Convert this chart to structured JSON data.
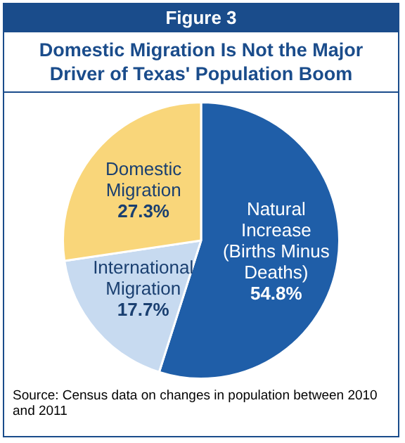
{
  "chart_data": {
    "type": "pie",
    "title": "Domestic Migration Is Not the Major Driver of Texas' Population Boom",
    "categories": [
      "Natural Increase (Births Minus Deaths)",
      "International Migration",
      "Domestic Migration"
    ],
    "values": [
      54.8,
      17.7,
      27.3
    ],
    "colors": [
      "#1f5ea8",
      "#c7daf0",
      "#f9d67a"
    ],
    "value_labels": [
      "54.8%",
      "17.7%",
      "27.3%"
    ],
    "legend": false,
    "annotations": [
      "Figure 3",
      "Source: Census data on changes in population between 2010 and 2011"
    ]
  }
}
